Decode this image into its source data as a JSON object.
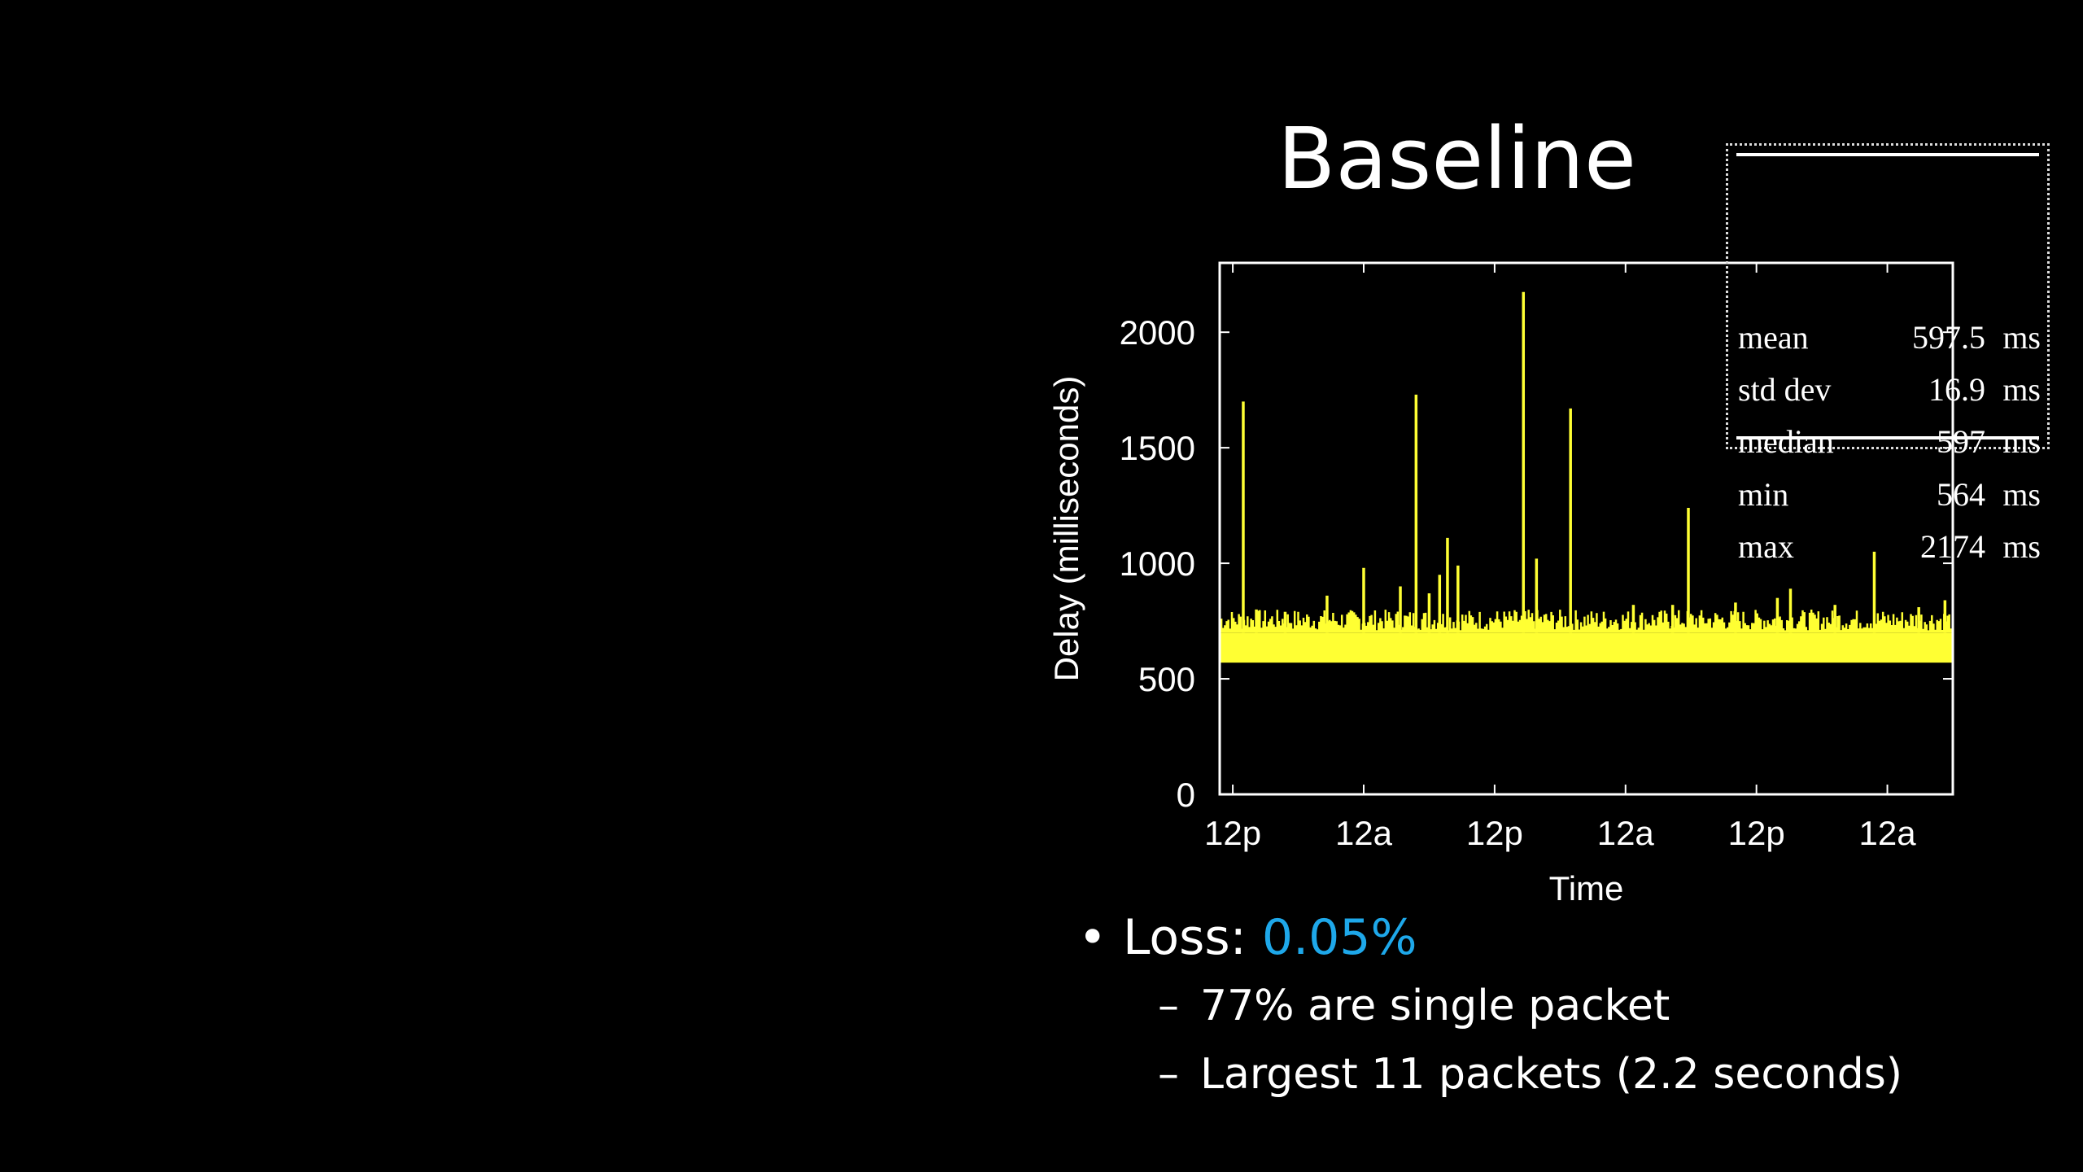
{
  "slide": {
    "title": "Baseline"
  },
  "stats": [
    {
      "name": "mean",
      "value": "597.5",
      "unit": "ms"
    },
    {
      "name": "std dev",
      "value": "16.9",
      "unit": "ms"
    },
    {
      "name": "median",
      "value": "597",
      "unit": "ms"
    },
    {
      "name": "min",
      "value": "564",
      "unit": "ms"
    },
    {
      "name": "max",
      "value": "2174",
      "unit": "ms"
    }
  ],
  "bullets": {
    "loss_label": "Loss: ",
    "loss_value": "0.05%",
    "sub_items": [
      "77% are single packet",
      "Largest 11 packets (2.2 seconds)"
    ]
  },
  "colors": {
    "series": "#ffff33",
    "accent": "#1ea8ea",
    "axes": "#ffffff",
    "background": "#000000"
  },
  "chart_data": {
    "type": "line",
    "title": "",
    "xlabel": "Time",
    "ylabel": "Delay (milliseconds)",
    "ylim": [
      0,
      2300
    ],
    "yticks": [
      0,
      500,
      1000,
      1500,
      2000
    ],
    "xlim": [
      -0.05,
      2.75
    ],
    "xticks": [
      {
        "value": 0,
        "label": "12p"
      },
      {
        "value": 0.5,
        "label": "12a"
      },
      {
        "value": 1,
        "label": "12p"
      },
      {
        "value": 1.5,
        "label": "12a"
      },
      {
        "value": 2,
        "label": "12p"
      },
      {
        "value": 2.5,
        "label": "12a"
      }
    ],
    "x_unit": "days since first 12p tick",
    "grid": false,
    "series": [
      {
        "baseline_band": [
          570,
          700
        ],
        "spikes": [
          {
            "x": 0.04,
            "y": 1700
          },
          {
            "x": 0.09,
            "y": 800
          },
          {
            "x": 0.2,
            "y": 790
          },
          {
            "x": 0.36,
            "y": 860
          },
          {
            "x": 0.5,
            "y": 980
          },
          {
            "x": 0.64,
            "y": 900
          },
          {
            "x": 0.7,
            "y": 1730
          },
          {
            "x": 0.75,
            "y": 870
          },
          {
            "x": 0.79,
            "y": 950
          },
          {
            "x": 0.82,
            "y": 1110
          },
          {
            "x": 0.86,
            "y": 990
          },
          {
            "x": 1.11,
            "y": 2174
          },
          {
            "x": 1.16,
            "y": 1020
          },
          {
            "x": 1.29,
            "y": 1670
          },
          {
            "x": 1.53,
            "y": 820
          },
          {
            "x": 1.68,
            "y": 820
          },
          {
            "x": 1.74,
            "y": 1240
          },
          {
            "x": 1.92,
            "y": 830
          },
          {
            "x": 2.08,
            "y": 850
          },
          {
            "x": 2.13,
            "y": 890
          },
          {
            "x": 2.3,
            "y": 820
          },
          {
            "x": 2.45,
            "y": 1050
          },
          {
            "x": 2.62,
            "y": 810
          },
          {
            "x": 2.72,
            "y": 840
          }
        ]
      }
    ]
  }
}
